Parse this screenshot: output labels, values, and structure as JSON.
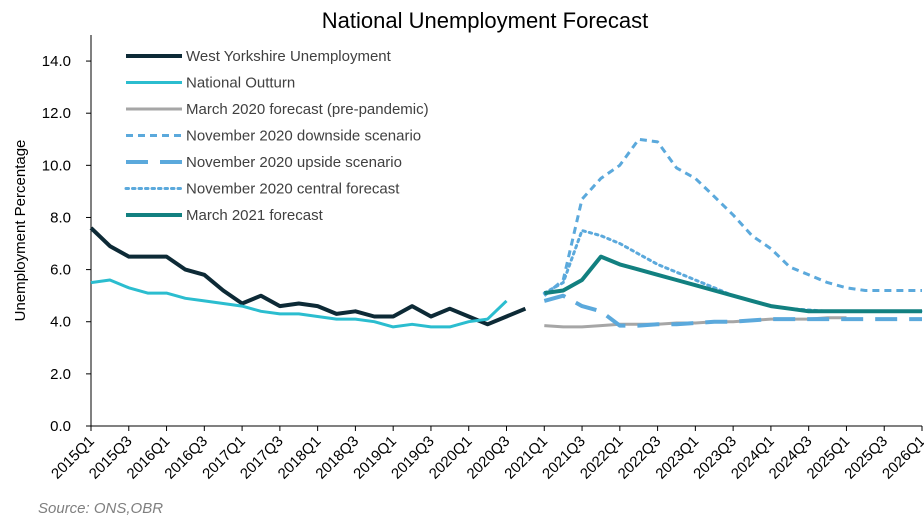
{
  "chart_data": {
    "type": "line",
    "title": "National Unemployment Forecast",
    "ylabel": "Unemployment  Percentage",
    "xlabel": "",
    "ylim": [
      0,
      15
    ],
    "yticks": [
      "0.0",
      "2.0",
      "4.0",
      "6.0",
      "8.0",
      "10.0",
      "12.0",
      "14.0"
    ],
    "x_tick_labels": [
      "2015Q1",
      "2015Q3",
      "2016Q1",
      "2016Q3",
      "2017Q1",
      "2017Q3",
      "2018Q1",
      "2018Q3",
      "2019Q1",
      "2019Q3",
      "2020Q1",
      "2020Q3",
      "2021Q1",
      "2021Q3",
      "2022Q1",
      "2022Q3",
      "2023Q1",
      "2023Q3",
      "2024Q1",
      "2024Q3",
      "2025Q1",
      "2025Q3",
      "2026Q1"
    ],
    "x_start": "2015Q1",
    "x_end": "2026Q1",
    "legend_position": "top-left",
    "series": [
      {
        "name": "West Yorkshire Unemployment",
        "color": "#0d2a36",
        "style": "solid",
        "width": 4,
        "x": [
          "2015Q1",
          "2015Q2",
          "2015Q3",
          "2015Q4",
          "2016Q1",
          "2016Q2",
          "2016Q3",
          "2016Q4",
          "2017Q1",
          "2017Q2",
          "2017Q3",
          "2017Q4",
          "2018Q1",
          "2018Q2",
          "2018Q3",
          "2018Q4",
          "2019Q1",
          "2019Q2",
          "2019Q3",
          "2019Q4",
          "2020Q1",
          "2020Q2",
          "2020Q3",
          "2020Q4",
          "2021Q1"
        ],
        "values": [
          7.6,
          6.9,
          6.5,
          6.5,
          6.5,
          6.0,
          5.8,
          5.2,
          4.7,
          5.0,
          4.6,
          4.7,
          4.6,
          4.3,
          4.4,
          4.2,
          4.2,
          4.6,
          4.2,
          4.5,
          4.2,
          3.9,
          4.2,
          4.5,
          null
        ]
      },
      {
        "name": "National Outturn",
        "color": "#2bbdcf",
        "style": "solid",
        "width": 3,
        "x": [
          "2015Q1",
          "2015Q2",
          "2015Q3",
          "2015Q4",
          "2016Q1",
          "2016Q2",
          "2016Q3",
          "2016Q4",
          "2017Q1",
          "2017Q2",
          "2017Q3",
          "2017Q4",
          "2018Q1",
          "2018Q2",
          "2018Q3",
          "2018Q4",
          "2019Q1",
          "2019Q2",
          "2019Q3",
          "2019Q4",
          "2020Q1",
          "2020Q2",
          "2020Q3"
        ],
        "values": [
          5.5,
          5.6,
          5.3,
          5.1,
          5.1,
          4.9,
          4.8,
          4.7,
          4.6,
          4.4,
          4.3,
          4.3,
          4.2,
          4.1,
          4.1,
          4.0,
          3.8,
          3.9,
          3.8,
          3.8,
          4.0,
          4.1,
          4.8
        ]
      },
      {
        "name": "March 2020 forecast (pre-pandemic)",
        "color": "#a6a6a6",
        "style": "solid",
        "width": 3,
        "x": [
          "2021Q1",
          "2021Q2",
          "2021Q3",
          "2021Q4",
          "2022Q1",
          "2022Q2",
          "2022Q3",
          "2022Q4",
          "2023Q1",
          "2023Q2",
          "2023Q3",
          "2023Q4",
          "2024Q1",
          "2024Q2",
          "2024Q3",
          "2024Q4",
          "2025Q1"
        ],
        "values": [
          3.85,
          3.8,
          3.8,
          3.85,
          3.9,
          3.9,
          3.9,
          3.95,
          3.95,
          4.0,
          4.0,
          4.05,
          4.1,
          4.1,
          4.1,
          4.15,
          4.15
        ]
      },
      {
        "name": "November 2020 downside scenario",
        "color": "#5ba9dc",
        "style": "dash",
        "width": 3,
        "x": [
          "2021Q1",
          "2021Q2",
          "2021Q3",
          "2021Q4",
          "2022Q1",
          "2022Q2",
          "2022Q3",
          "2022Q4",
          "2023Q1",
          "2023Q2",
          "2023Q3",
          "2023Q4",
          "2024Q1",
          "2024Q2",
          "2024Q3",
          "2024Q4",
          "2025Q1",
          "2025Q2",
          "2025Q3",
          "2025Q4",
          "2026Q1"
        ],
        "values": [
          5.0,
          5.6,
          8.7,
          9.5,
          10.0,
          11.0,
          10.9,
          9.9,
          9.5,
          8.8,
          8.1,
          7.3,
          6.8,
          6.1,
          5.8,
          5.5,
          5.3,
          5.2,
          5.2,
          5.2,
          5.2
        ]
      },
      {
        "name": "November 2020 upside scenario",
        "color": "#5ba9dc",
        "style": "longdash",
        "width": 4,
        "x": [
          "2021Q1",
          "2021Q2",
          "2021Q3",
          "2021Q4",
          "2022Q1",
          "2022Q2",
          "2022Q3",
          "2022Q4",
          "2023Q1",
          "2023Q2",
          "2023Q3",
          "2023Q4",
          "2024Q1",
          "2024Q2",
          "2024Q3",
          "2024Q4",
          "2025Q1",
          "2025Q2",
          "2025Q3",
          "2025Q4",
          "2026Q1"
        ],
        "values": [
          4.8,
          5.0,
          4.6,
          4.4,
          3.85,
          3.85,
          3.9,
          3.9,
          3.95,
          4.0,
          4.0,
          4.05,
          4.1,
          4.1,
          4.1,
          4.1,
          4.1,
          4.1,
          4.1,
          4.1,
          4.1
        ]
      },
      {
        "name": "November 2020 central forecast",
        "color": "#5ba9dc",
        "style": "dot",
        "width": 3,
        "x": [
          "2021Q1",
          "2021Q2",
          "2021Q3",
          "2021Q4",
          "2022Q1",
          "2022Q2",
          "2022Q3",
          "2022Q4",
          "2023Q1",
          "2023Q2",
          "2023Q3",
          "2023Q4",
          "2024Q1",
          "2024Q2",
          "2024Q3",
          "2024Q4",
          "2025Q1",
          "2025Q2",
          "2025Q3",
          "2025Q4",
          "2026Q1"
        ],
        "values": [
          5.1,
          5.5,
          7.5,
          7.3,
          7.0,
          6.6,
          6.2,
          5.9,
          5.6,
          5.3,
          5.0,
          4.8,
          4.6,
          4.5,
          4.45,
          4.4,
          4.4,
          4.4,
          4.4,
          4.4,
          4.4
        ]
      },
      {
        "name": "March 2021 forecast",
        "color": "#128080",
        "style": "solid",
        "width": 4,
        "x": [
          "2021Q1",
          "2021Q2",
          "2021Q3",
          "2021Q4",
          "2022Q1",
          "2022Q2",
          "2022Q3",
          "2022Q4",
          "2023Q1",
          "2023Q2",
          "2023Q3",
          "2023Q4",
          "2024Q1",
          "2024Q2",
          "2024Q3",
          "2024Q4",
          "2025Q1",
          "2025Q2",
          "2025Q3",
          "2025Q4",
          "2026Q1"
        ],
        "values": [
          5.1,
          5.2,
          5.6,
          6.5,
          6.2,
          6.0,
          5.8,
          5.6,
          5.4,
          5.2,
          5.0,
          4.8,
          4.6,
          4.5,
          4.4,
          4.4,
          4.4,
          4.4,
          4.4,
          4.4,
          4.4
        ]
      }
    ]
  },
  "source": "Source: ONS,OBR"
}
